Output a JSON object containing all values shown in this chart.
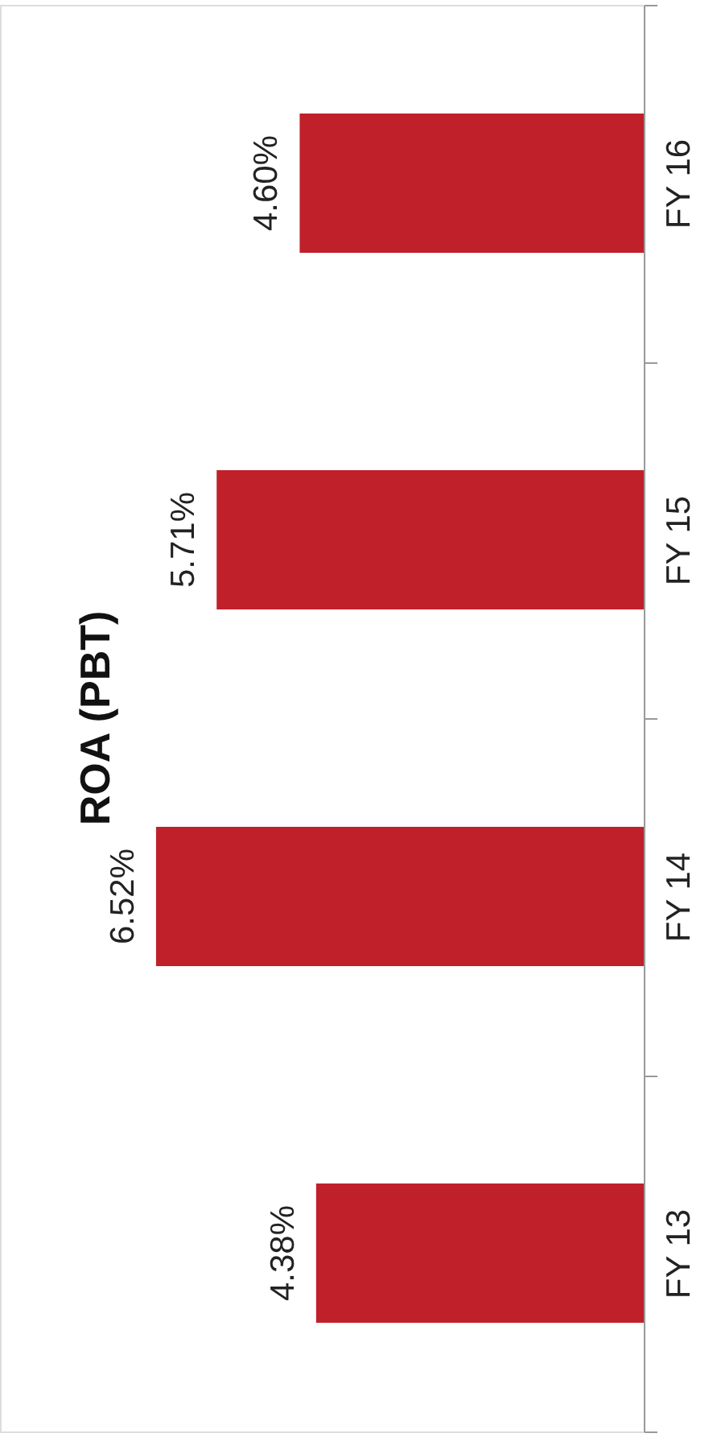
{
  "chart_data": {
    "type": "bar",
    "orientation": "horizontal",
    "title": "ROA (PBT)",
    "categories": [
      "FY 16",
      "FY 15",
      "FY 14",
      "FY 13"
    ],
    "values": [
      4.6,
      5.71,
      6.52,
      4.38
    ],
    "value_labels": [
      "4.60%",
      "5.71%",
      "6.52%",
      "4.38%"
    ],
    "color": "#c0202a",
    "grid": false
  }
}
